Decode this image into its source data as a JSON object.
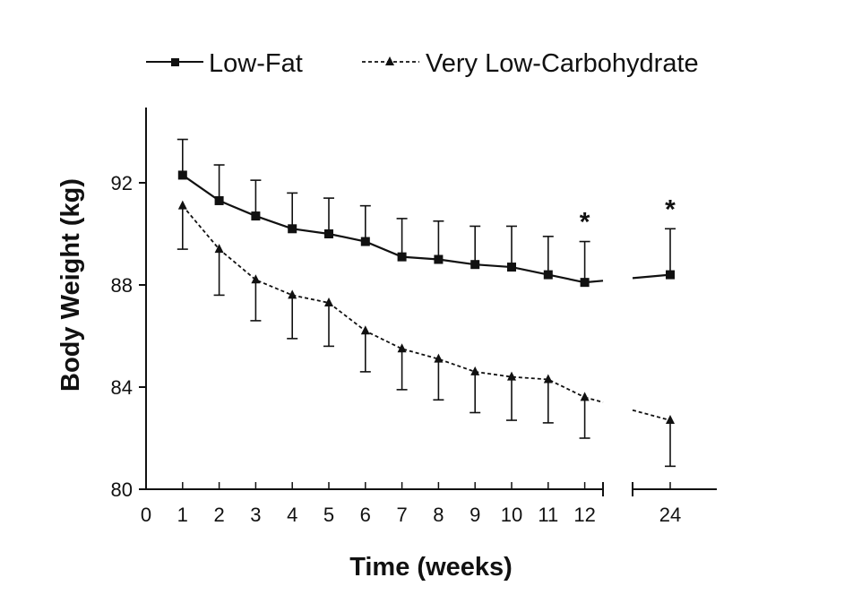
{
  "chart_data": {
    "type": "line",
    "xlabel": "Time (weeks)",
    "ylabel": "Body Weight (kg)",
    "ylim": [
      80,
      94
    ],
    "yticks": [
      "80",
      "84",
      "88",
      "92"
    ],
    "xticks": [
      "0",
      "1",
      "2",
      "3",
      "4",
      "5",
      "6",
      "7",
      "8",
      "9",
      "10",
      "11",
      "12",
      "24"
    ],
    "x_axis_break": "between 12 and 24",
    "legend_placement": "top",
    "x": [
      1,
      2,
      3,
      4,
      5,
      6,
      7,
      8,
      9,
      10,
      11,
      12,
      24
    ],
    "series": [
      {
        "name": "Low-Fat",
        "line_style": "solid",
        "marker": "square",
        "values": [
          92.3,
          91.3,
          90.7,
          90.2,
          90.0,
          89.7,
          89.1,
          89.0,
          88.8,
          88.7,
          88.4,
          88.1,
          88.4
        ],
        "error_upper": [
          93.7,
          92.7,
          92.1,
          91.6,
          91.4,
          91.1,
          90.6,
          90.5,
          90.3,
          90.3,
          89.9,
          89.7,
          90.2
        ]
      },
      {
        "name": "Very Low-Carbohydrate",
        "line_style": "dashed",
        "marker": "triangle",
        "values": [
          91.1,
          89.4,
          88.2,
          87.6,
          87.3,
          86.2,
          85.5,
          85.1,
          84.6,
          84.4,
          84.3,
          83.6,
          82.7
        ],
        "error_lower": [
          89.4,
          87.6,
          86.6,
          85.9,
          85.6,
          84.6,
          83.9,
          83.5,
          83.0,
          82.7,
          82.6,
          82.0,
          80.9
        ]
      }
    ],
    "annotations": [
      {
        "x": 12,
        "text": "*"
      },
      {
        "x": 24,
        "text": "*"
      }
    ]
  }
}
